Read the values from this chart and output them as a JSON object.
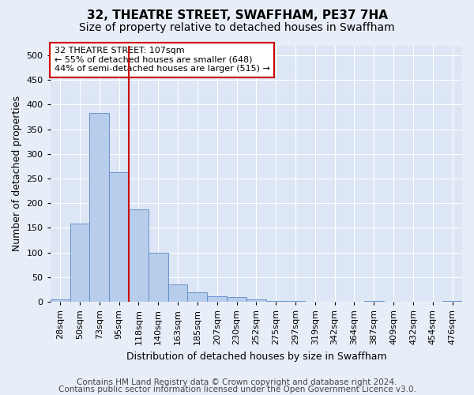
{
  "title": "32, THEATRE STREET, SWAFFHAM, PE37 7HA",
  "subtitle": "Size of property relative to detached houses in Swaffham",
  "xlabel": "Distribution of detached houses by size in Swaffham",
  "ylabel": "Number of detached properties",
  "footer_line1": "Contains HM Land Registry data © Crown copyright and database right 2024.",
  "footer_line2": "Contains public sector information licensed under the Open Government Licence v3.0.",
  "bar_labels": [
    "28sqm",
    "50sqm",
    "73sqm",
    "95sqm",
    "118sqm",
    "140sqm",
    "163sqm",
    "185sqm",
    "207sqm",
    "230sqm",
    "252sqm",
    "275sqm",
    "297sqm",
    "319sqm",
    "342sqm",
    "364sqm",
    "387sqm",
    "409sqm",
    "432sqm",
    "454sqm",
    "476sqm"
  ],
  "bar_values": [
    5,
    158,
    383,
    263,
    188,
    100,
    35,
    20,
    12,
    9,
    5,
    2,
    1,
    0,
    0,
    0,
    1,
    0,
    0,
    0,
    1
  ],
  "bar_color": "#b8ccec",
  "bar_edge_color": "#5a8ac6",
  "vline_x": 3.5,
  "vline_color": "#cc0000",
  "annotation_text": "32 THEATRE STREET: 107sqm\n← 55% of detached houses are smaller (648)\n44% of semi-detached houses are larger (515) →",
  "annotation_box_color": "#ffffff",
  "annotation_box_edge_color": "#cc0000",
  "ylim": [
    0,
    520
  ],
  "yticks": [
    0,
    50,
    100,
    150,
    200,
    250,
    300,
    350,
    400,
    450,
    500
  ],
  "background_color": "#e8eef7",
  "plot_background": "#dce6f5",
  "grid_color": "#ffffff",
  "title_fontsize": 11,
  "subtitle_fontsize": 10,
  "tick_fontsize": 8,
  "ylabel_fontsize": 9,
  "xlabel_fontsize": 9,
  "annotation_fontsize": 8,
  "footer_fontsize": 7.5
}
